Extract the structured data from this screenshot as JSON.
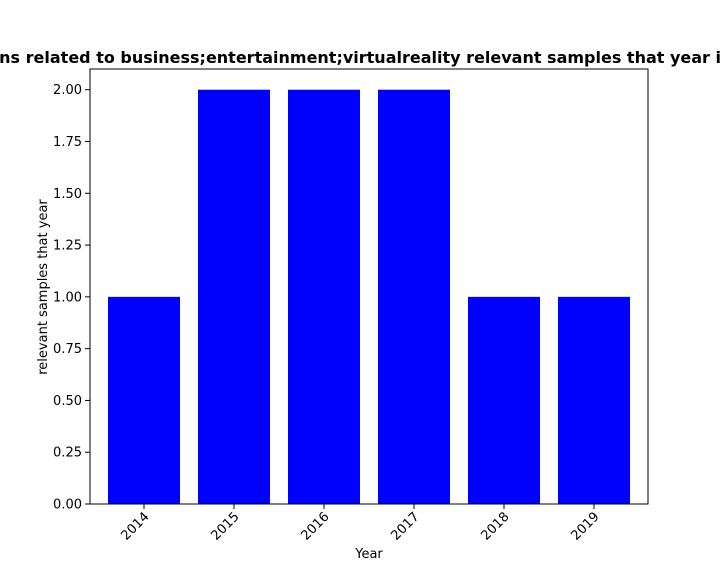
{
  "chart_data": {
    "type": "bar",
    "title": "Number of Publications related to business;entertainment;virtualreality relevant samples that year in publications per Year",
    "xlabel": "Year",
    "ylabel": "relevant samples that year",
    "categories": [
      "2014",
      "2015",
      "2016",
      "2017",
      "2018",
      "2019"
    ],
    "values": [
      1,
      2,
      2,
      2,
      1,
      1
    ],
    "ylim": [
      0,
      2.1
    ],
    "yticks": [
      "0.00",
      "0.25",
      "0.50",
      "0.75",
      "1.00",
      "1.25",
      "1.50",
      "1.75",
      "2.00"
    ],
    "bar_color": "#0000ff",
    "grid": false,
    "legend": "none"
  }
}
